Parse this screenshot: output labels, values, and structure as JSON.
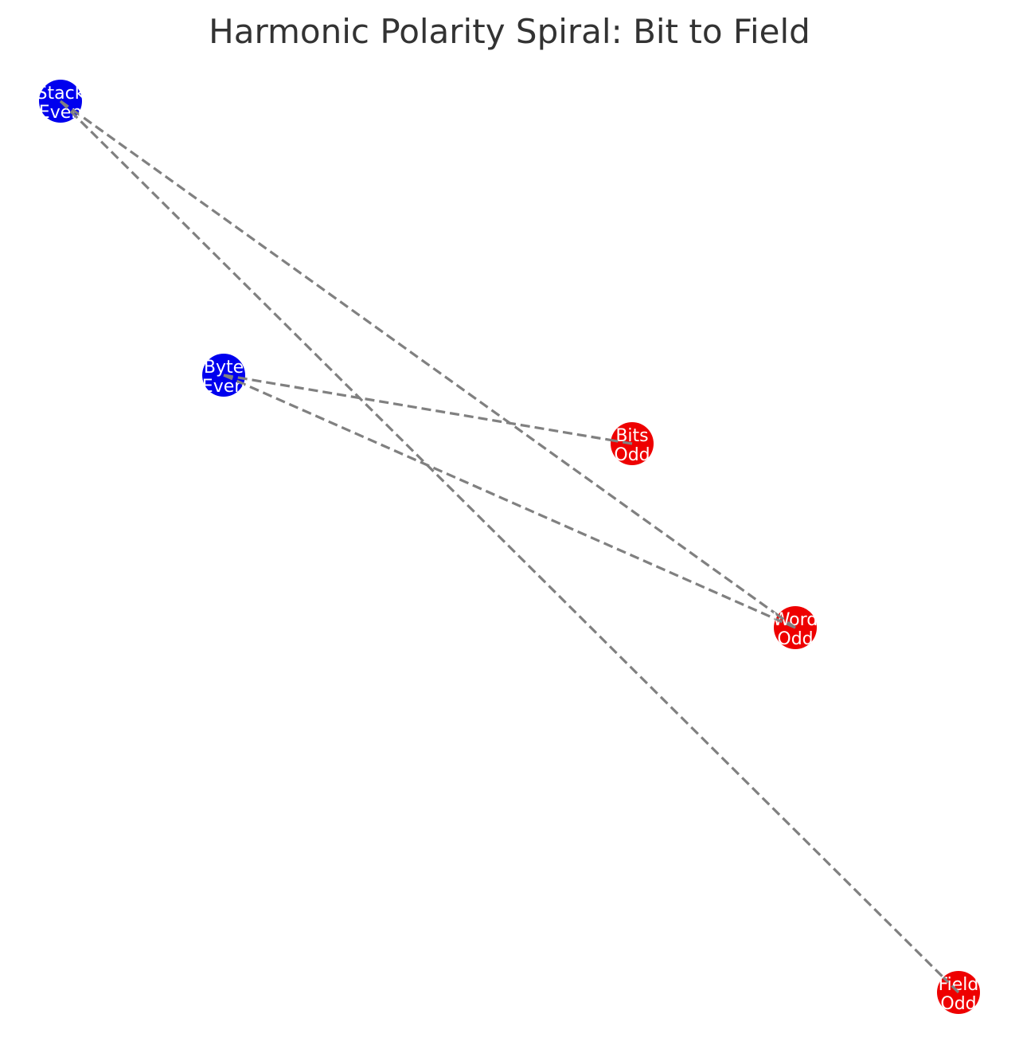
{
  "title": "Harmonic Polarity Spiral: Bit to Field",
  "colors": {
    "even": "#0000ee",
    "odd": "#ee0000",
    "edge": "#808080",
    "label": "#ffffff",
    "title": "#333333"
  },
  "nodes": [
    {
      "id": "stack",
      "line1": "Stack",
      "line2": "Even",
      "parity": "even"
    },
    {
      "id": "byte",
      "line1": "Byte",
      "line2": "Even",
      "parity": "even"
    },
    {
      "id": "bits",
      "line1": "Bits",
      "line2": "Odd",
      "parity": "odd"
    },
    {
      "id": "word",
      "line1": "Word",
      "line2": "Odd",
      "parity": "odd"
    },
    {
      "id": "field",
      "line1": "Field",
      "line2": "Odd",
      "parity": "odd"
    }
  ],
  "edges": [
    {
      "from": "byte",
      "to": "bits"
    },
    {
      "from": "byte",
      "to": "word"
    },
    {
      "from": "stack",
      "to": "word"
    },
    {
      "from": "stack",
      "to": "field"
    }
  ]
}
